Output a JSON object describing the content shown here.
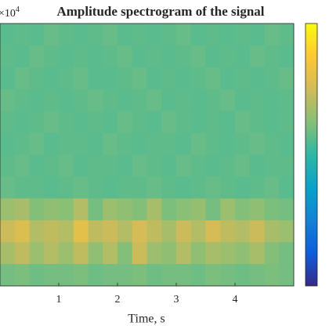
{
  "chart_data": {
    "type": "heatmap",
    "title": "Amplitude spectrogram of the signal",
    "xlabel": "Time, s",
    "y_multiplier": {
      "base": "×10",
      "exponent": "4"
    },
    "xlim": [
      0,
      5
    ],
    "xticks": [
      1,
      2,
      3,
      4
    ],
    "clim": [
      0,
      1
    ],
    "colormap": [
      "#352a87",
      "#0f5cdd",
      "#1481d6",
      "#06a4ca",
      "#2eb7a4",
      "#87bf77",
      "#d1bb59",
      "#fec832",
      "#f9fb0e"
    ],
    "z": [
      [
        0.56,
        0.57,
        0.56,
        0.58,
        0.57,
        0.56,
        0.57,
        0.58,
        0.56,
        0.57,
        0.56,
        0.57,
        0.58,
        0.56,
        0.57,
        0.56,
        0.57,
        0.56,
        0.58,
        0.57
      ],
      [
        0.57,
        0.56,
        0.58,
        0.57,
        0.56,
        0.57,
        0.56,
        0.57,
        0.58,
        0.56,
        0.57,
        0.56,
        0.57,
        0.58,
        0.56,
        0.57,
        0.56,
        0.58,
        0.57,
        0.56
      ],
      [
        0.56,
        0.58,
        0.57,
        0.56,
        0.57,
        0.58,
        0.56,
        0.56,
        0.57,
        0.58,
        0.56,
        0.57,
        0.56,
        0.57,
        0.58,
        0.56,
        0.57,
        0.56,
        0.57,
        0.58
      ],
      [
        0.58,
        0.57,
        0.56,
        0.57,
        0.56,
        0.57,
        0.58,
        0.57,
        0.56,
        0.57,
        0.58,
        0.56,
        0.57,
        0.56,
        0.57,
        0.58,
        0.56,
        0.57,
        0.56,
        0.57
      ],
      [
        0.57,
        0.56,
        0.57,
        0.58,
        0.57,
        0.56,
        0.57,
        0.56,
        0.58,
        0.57,
        0.56,
        0.58,
        0.57,
        0.56,
        0.57,
        0.56,
        0.58,
        0.57,
        0.56,
        0.57
      ],
      [
        0.56,
        0.57,
        0.58,
        0.56,
        0.57,
        0.57,
        0.56,
        0.58,
        0.57,
        0.56,
        0.57,
        0.57,
        0.56,
        0.58,
        0.57,
        0.56,
        0.57,
        0.58,
        0.57,
        0.56
      ],
      [
        0.57,
        0.58,
        0.56,
        0.57,
        0.58,
        0.56,
        0.57,
        0.57,
        0.56,
        0.58,
        0.57,
        0.56,
        0.58,
        0.57,
        0.56,
        0.57,
        0.58,
        0.56,
        0.57,
        0.57
      ],
      [
        0.58,
        0.57,
        0.57,
        0.56,
        0.57,
        0.58,
        0.57,
        0.56,
        0.57,
        0.57,
        0.58,
        0.57,
        0.56,
        0.57,
        0.58,
        0.57,
        0.56,
        0.57,
        0.58,
        0.56
      ],
      [
        0.66,
        0.68,
        0.62,
        0.64,
        0.63,
        0.7,
        0.6,
        0.66,
        0.64,
        0.62,
        0.68,
        0.61,
        0.63,
        0.65,
        0.6,
        0.66,
        0.62,
        0.64,
        0.61,
        0.6
      ],
      [
        0.74,
        0.78,
        0.7,
        0.72,
        0.7,
        0.8,
        0.72,
        0.74,
        0.7,
        0.76,
        0.72,
        0.68,
        0.74,
        0.7,
        0.76,
        0.72,
        0.7,
        0.74,
        0.68,
        0.66
      ],
      [
        0.68,
        0.72,
        0.66,
        0.7,
        0.66,
        0.72,
        0.64,
        0.7,
        0.62,
        0.74,
        0.66,
        0.64,
        0.7,
        0.64,
        0.68,
        0.66,
        0.64,
        0.68,
        0.62,
        0.6
      ],
      [
        0.6,
        0.61,
        0.59,
        0.6,
        0.6,
        0.61,
        0.59,
        0.6,
        0.6,
        0.61,
        0.59,
        0.6,
        0.6,
        0.59,
        0.61,
        0.6,
        0.59,
        0.6,
        0.61,
        0.6
      ]
    ]
  }
}
